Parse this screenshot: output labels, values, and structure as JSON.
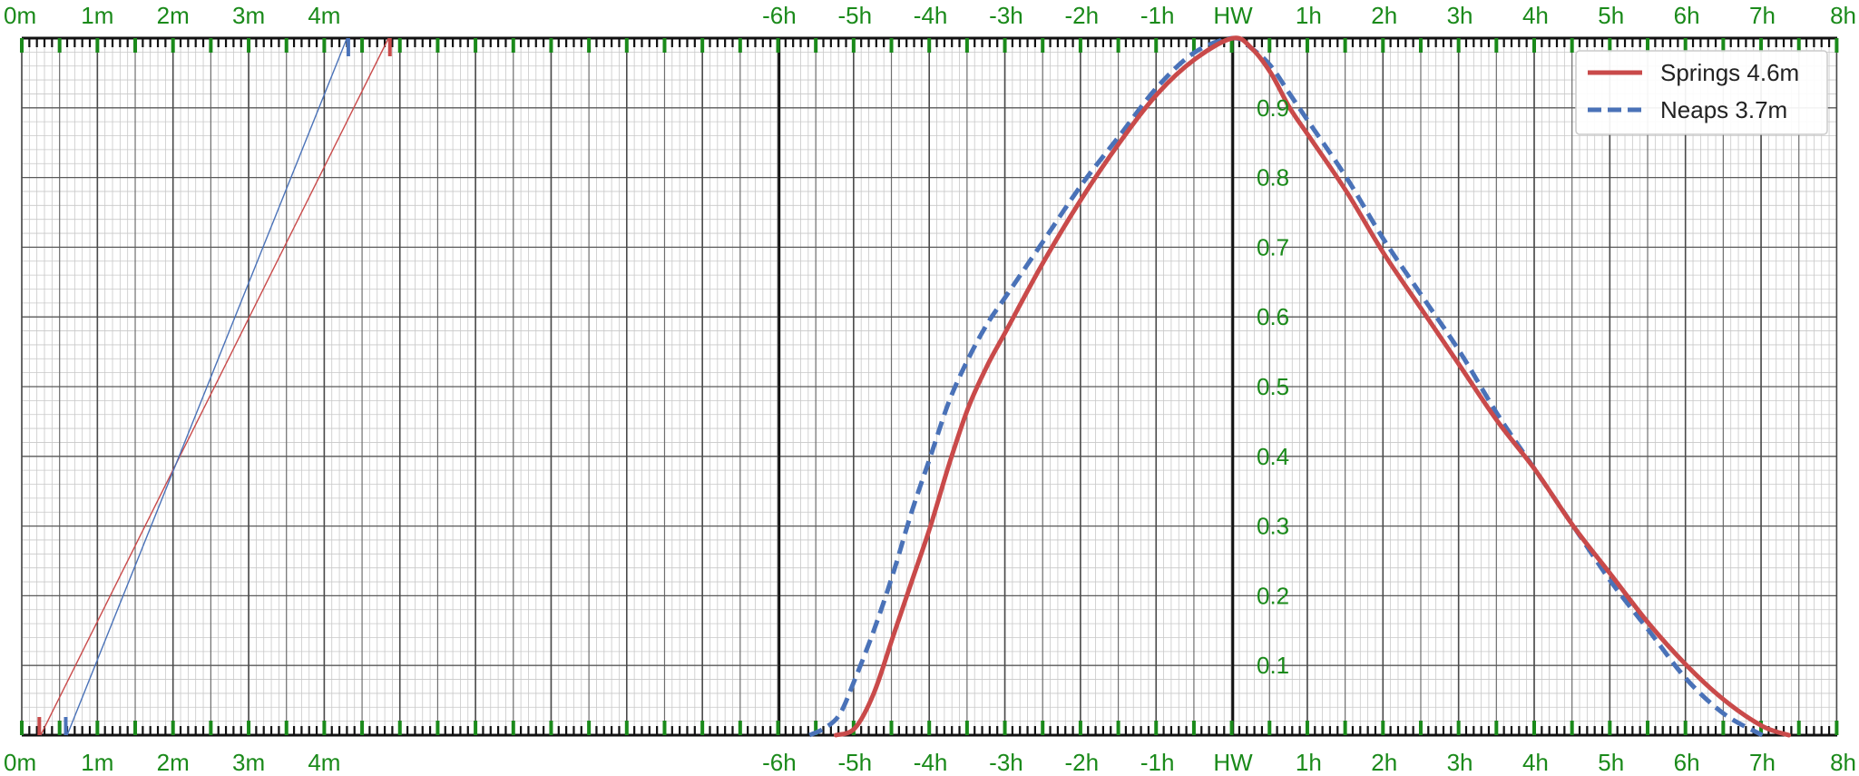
{
  "chart_data": {
    "type": "line",
    "title": "",
    "height_scale": {
      "labels": [
        "0m",
        "1m",
        "2m",
        "3m",
        "4m"
      ],
      "min": 0,
      "max": 5,
      "unit": "m"
    },
    "time_axis": {
      "labels": [
        "-6h",
        "-5h",
        "-4h",
        "-3h",
        "-2h",
        "-1h",
        "HW",
        "1h",
        "2h",
        "3h",
        "4h",
        "5h",
        "6h",
        "7h",
        "8h"
      ],
      "min": -6,
      "max": 8,
      "unit": "hours from HW"
    },
    "ratio_axis": {
      "labels": [
        "0.1",
        "0.2",
        "0.3",
        "0.4",
        "0.5",
        "0.6",
        "0.7",
        "0.8",
        "0.9"
      ],
      "min": 0,
      "max": 1
    },
    "grid": true,
    "legend_position": "top-right",
    "series": [
      {
        "name": "Springs 4.6m",
        "color": "#c94a4a",
        "dash": "solid",
        "x": [
          -5.25,
          -5.0,
          -4.75,
          -4.5,
          -4.25,
          -4.0,
          -3.75,
          -3.5,
          -3.25,
          -3.0,
          -2.5,
          -2.0,
          -1.5,
          -1.0,
          -0.5,
          0.0,
          0.25,
          0.5,
          0.75,
          1.0,
          1.5,
          2.0,
          2.5,
          3.0,
          3.5,
          4.0,
          4.5,
          5.0,
          5.5,
          6.0,
          6.5,
          7.0,
          7.35
        ],
        "y": [
          0.0,
          0.01,
          0.06,
          0.14,
          0.22,
          0.3,
          0.39,
          0.47,
          0.53,
          0.58,
          0.68,
          0.77,
          0.85,
          0.92,
          0.97,
          1.0,
          0.985,
          0.95,
          0.9,
          0.86,
          0.78,
          0.69,
          0.61,
          0.53,
          0.45,
          0.38,
          0.3,
          0.23,
          0.16,
          0.1,
          0.05,
          0.013,
          0.0
        ]
      },
      {
        "name": "Neaps 3.7m",
        "color": "#4a72b8",
        "dash": "dashed",
        "x": [
          -5.6,
          -5.4,
          -5.2,
          -5.0,
          -4.75,
          -4.5,
          -4.25,
          -4.0,
          -3.75,
          -3.5,
          -3.25,
          -3.0,
          -2.5,
          -2.0,
          -1.5,
          -1.0,
          -0.5,
          0.0,
          0.25,
          0.5,
          0.75,
          1.0,
          1.5,
          2.0,
          2.5,
          3.0,
          3.5,
          4.0,
          4.5,
          5.0,
          5.5,
          6.0,
          6.5,
          7.0
        ],
        "y": [
          0.0,
          0.01,
          0.03,
          0.08,
          0.15,
          0.23,
          0.32,
          0.4,
          0.48,
          0.54,
          0.59,
          0.63,
          0.71,
          0.79,
          0.86,
          0.93,
          0.98,
          1.0,
          0.985,
          0.96,
          0.92,
          0.88,
          0.8,
          0.71,
          0.63,
          0.55,
          0.46,
          0.38,
          0.3,
          0.22,
          0.15,
          0.08,
          0.03,
          0.0
        ]
      }
    ],
    "height_lines": [
      {
        "name": "Springs 4.6m",
        "color": "#c94a4a",
        "low_water": 0.25,
        "high_water": 4.85
      },
      {
        "name": "Neaps 3.7m",
        "color": "#4a72b8",
        "low_water": 0.6,
        "high_water": 4.3
      }
    ]
  }
}
